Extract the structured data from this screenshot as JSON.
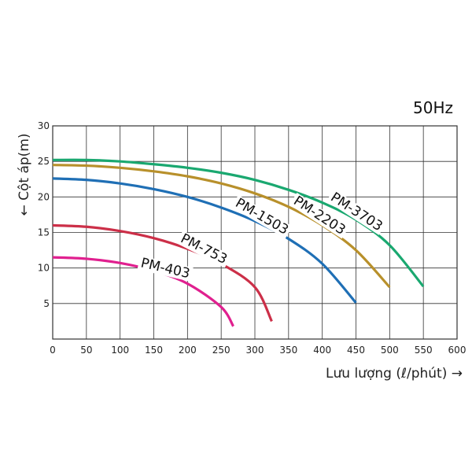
{
  "chart_data": {
    "type": "line",
    "title": "",
    "annotation": "50Hz",
    "xlabel": "Lưu lượng (ℓ/phút) →",
    "ylabel": "← Cột áp(m)",
    "xlim": [
      0,
      600
    ],
    "ylim": [
      0,
      30
    ],
    "x_ticks": [
      "0",
      "50",
      "100",
      "150",
      "200",
      "250",
      "300",
      "350",
      "400",
      "450",
      "500",
      "550",
      "600"
    ],
    "y_ticks": [
      "5",
      "10",
      "15",
      "20",
      "25",
      "30"
    ],
    "grid": true,
    "series": [
      {
        "name": "PM-3703",
        "color": "#1aa870",
        "points": [
          [
            0,
            25.2
          ],
          [
            50,
            25.2
          ],
          [
            100,
            25.0
          ],
          [
            150,
            24.6
          ],
          [
            200,
            24.1
          ],
          [
            250,
            23.4
          ],
          [
            300,
            22.4
          ],
          [
            350,
            21.0
          ],
          [
            400,
            19.2
          ],
          [
            450,
            16.8
          ],
          [
            500,
            13.2
          ],
          [
            550,
            7.4
          ]
        ]
      },
      {
        "name": "PM-2203",
        "color": "#b8902b",
        "points": [
          [
            0,
            24.5
          ],
          [
            50,
            24.4
          ],
          [
            100,
            24.1
          ],
          [
            150,
            23.6
          ],
          [
            200,
            22.9
          ],
          [
            250,
            21.9
          ],
          [
            300,
            20.5
          ],
          [
            350,
            18.6
          ],
          [
            400,
            16.0
          ],
          [
            450,
            12.5
          ],
          [
            500,
            7.3
          ]
        ]
      },
      {
        "name": "PM-1503",
        "color": "#1f6fb5",
        "points": [
          [
            0,
            22.6
          ],
          [
            50,
            22.4
          ],
          [
            100,
            21.9
          ],
          [
            150,
            21.1
          ],
          [
            200,
            20.0
          ],
          [
            250,
            18.5
          ],
          [
            300,
            16.6
          ],
          [
            350,
            14.1
          ],
          [
            400,
            10.6
          ],
          [
            450,
            5.1
          ]
        ]
      },
      {
        "name": "PM-753",
        "color": "#cc2f48",
        "points": [
          [
            0,
            16.0
          ],
          [
            50,
            15.8
          ],
          [
            100,
            15.2
          ],
          [
            150,
            14.2
          ],
          [
            200,
            12.7
          ],
          [
            250,
            10.6
          ],
          [
            300,
            7.3
          ],
          [
            325,
            2.5
          ]
        ]
      },
      {
        "name": "PM-403",
        "color": "#e0208f",
        "points": [
          [
            0,
            11.5
          ],
          [
            50,
            11.3
          ],
          [
            100,
            10.7
          ],
          [
            150,
            9.6
          ],
          [
            200,
            7.8
          ],
          [
            250,
            4.5
          ],
          [
            268,
            1.8
          ]
        ]
      }
    ]
  }
}
